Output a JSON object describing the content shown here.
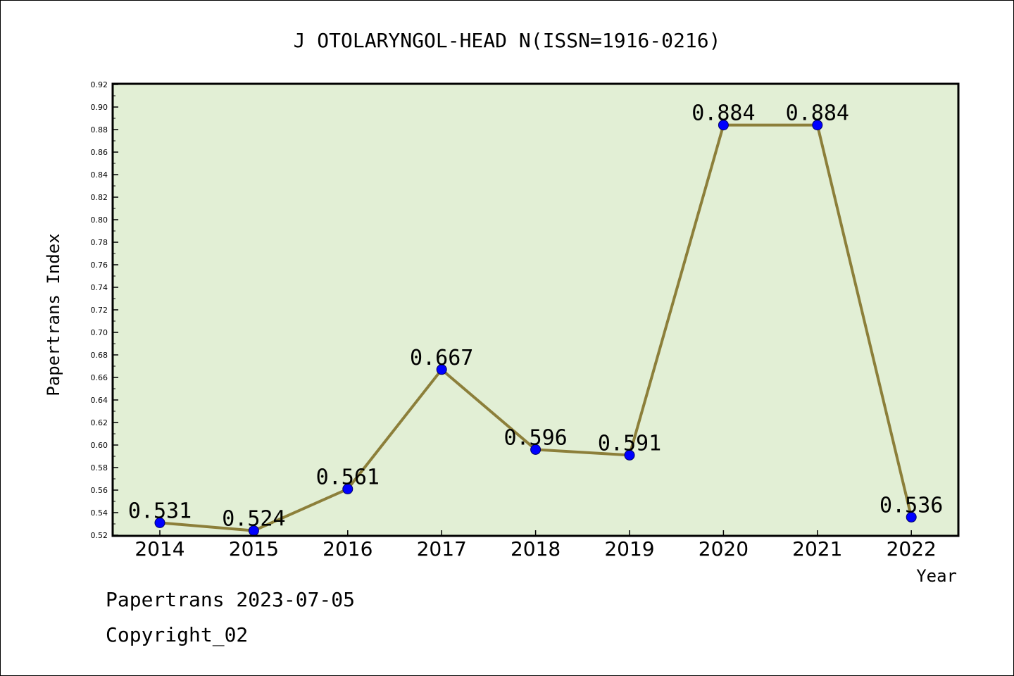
{
  "chart_data": {
    "type": "line",
    "title": "J OTOLARYNGOL-HEAD N(ISSN=1916-0216)",
    "xlabel": "Year",
    "ylabel": "Papertrans Index",
    "x": [
      "2014",
      "2015",
      "2016",
      "2017",
      "2018",
      "2019",
      "2020",
      "2021",
      "2022"
    ],
    "values": [
      0.531,
      0.524,
      0.561,
      0.667,
      0.596,
      0.591,
      0.884,
      0.884,
      0.536
    ],
    "data_labels": [
      "0.531",
      "0.524",
      "0.561",
      "0.667",
      "0.596",
      "0.591",
      "0.884",
      "0.884",
      "0.536"
    ],
    "y_ticks": [
      "0.52",
      "0.54",
      "0.56",
      "0.58",
      "0.60",
      "0.62",
      "0.64",
      "0.66",
      "0.68",
      "0.70",
      "0.72",
      "0.74",
      "0.76",
      "0.78",
      "0.80",
      "0.82",
      "0.84",
      "0.86",
      "0.88",
      "0.90",
      "0.92"
    ],
    "ylim": [
      0.52,
      0.92
    ],
    "grid": false,
    "colors": {
      "plot_background": "#e2efd5",
      "line": "#8c7f3a",
      "marker": "#0000ff"
    }
  },
  "footer": {
    "date_text": "Papertrans 2023-07-05",
    "copyright_text": "Copyright_02"
  }
}
